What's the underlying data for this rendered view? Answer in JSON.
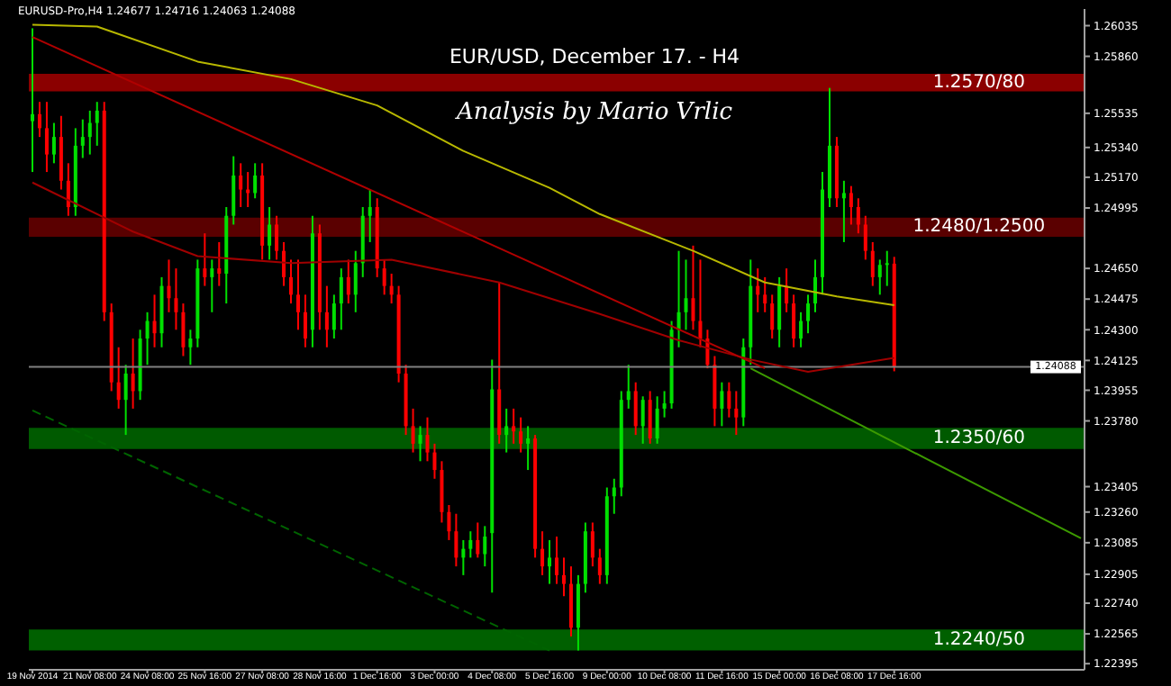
{
  "chart_data": {
    "type": "candlestick",
    "title": "EUR/USD, December 17. - H4",
    "subtitle": "Analysis by Mario Vrlic",
    "annotations": [
      "EURUSD-Pro,H4  1.24677 1.24716 1.24063 1.24088"
    ],
    "categories": [
      "19 Nov 2014",
      null,
      null,
      null,
      null,
      null,
      null,
      null,
      "21 Nov 08:00",
      null,
      null,
      null,
      null,
      null,
      null,
      null,
      "24 Nov 08:00",
      null,
      null,
      null,
      null,
      null,
      null,
      null,
      "25 Nov 16:00",
      null,
      null,
      null,
      null,
      null,
      null,
      null,
      "27 Nov 08:00",
      null,
      null,
      null,
      null,
      null,
      null,
      null,
      "28 Nov 16:00",
      null,
      null,
      null,
      null,
      null,
      null,
      null,
      "1 Dec 16:00",
      null,
      null,
      null,
      null,
      null,
      null,
      null,
      "3 Dec 00:00",
      null,
      null,
      null,
      null,
      null,
      null,
      null,
      "4 Dec 08:00",
      null,
      null,
      null,
      null,
      null,
      null,
      null,
      "5 Dec 16:00",
      null,
      null,
      null,
      null,
      null,
      null,
      null,
      "9 Dec 00:00",
      null,
      null,
      null,
      null,
      null,
      null,
      null,
      "10 Dec 08:00",
      null,
      null,
      null,
      null,
      null,
      null,
      null,
      "11 Dec 16:00",
      null,
      null,
      null,
      null,
      null,
      null,
      null,
      "15 Dec 00:00",
      null,
      null,
      null,
      null,
      null,
      null,
      null,
      "16 Dec 08:00",
      null,
      null,
      null,
      null,
      null,
      null,
      null,
      "17 Dec 16:00",
      null,
      null,
      null,
      null,
      null,
      null,
      null,
      null,
      null,
      null,
      null,
      null,
      null,
      null,
      null,
      null,
      null,
      null,
      null,
      null,
      null,
      null,
      null,
      null,
      null,
      null
    ],
    "ohlc": [
      [
        1.2549,
        1.2602,
        1.252,
        1.2553
      ],
      [
        1.2553,
        1.256,
        1.254,
        1.2545
      ],
      [
        1.2545,
        1.256,
        1.252,
        1.253
      ],
      [
        1.253,
        1.2548,
        1.2525,
        1.254
      ],
      [
        1.254,
        1.2552,
        1.251,
        1.2515
      ],
      [
        1.2515,
        1.2525,
        1.2495,
        1.25
      ],
      [
        1.25,
        1.2545,
        1.2495,
        1.2535
      ],
      [
        1.2535,
        1.255,
        1.2528,
        1.254
      ],
      [
        1.254,
        1.2555,
        1.253,
        1.2548
      ],
      [
        1.2548,
        1.256,
        1.2535,
        1.2555
      ],
      [
        1.2555,
        1.256,
        1.2435,
        1.244
      ],
      [
        1.244,
        1.2445,
        1.2395,
        1.24
      ],
      [
        1.24,
        1.242,
        1.2385,
        1.239
      ],
      [
        1.239,
        1.241,
        1.237,
        1.2405
      ],
      [
        1.2405,
        1.2425,
        1.2385,
        1.2395
      ],
      [
        1.2395,
        1.243,
        1.239,
        1.2425
      ],
      [
        1.2425,
        1.244,
        1.241,
        1.2435
      ],
      [
        1.2435,
        1.245,
        1.242,
        1.2428
      ],
      [
        1.2428,
        1.246,
        1.242,
        1.2455
      ],
      [
        1.2455,
        1.247,
        1.244,
        1.2448
      ],
      [
        1.2448,
        1.2465,
        1.243,
        1.244
      ],
      [
        1.244,
        1.2445,
        1.2415,
        1.242
      ],
      [
        1.242,
        1.243,
        1.241,
        1.2425
      ],
      [
        1.2425,
        1.247,
        1.242,
        1.2465
      ],
      [
        1.2465,
        1.2485,
        1.2455,
        1.246
      ],
      [
        1.246,
        1.247,
        1.244,
        1.2465
      ],
      [
        1.2465,
        1.248,
        1.2455,
        1.2462
      ],
      [
        1.2462,
        1.25,
        1.2445,
        1.2495
      ],
      [
        1.2495,
        1.2529,
        1.249,
        1.2518
      ],
      [
        1.2518,
        1.2525,
        1.25,
        1.251
      ],
      [
        1.251,
        1.252,
        1.25,
        1.2508
      ],
      [
        1.2508,
        1.2525,
        1.2505,
        1.2518
      ],
      [
        1.2518,
        1.2525,
        1.247,
        1.2478
      ],
      [
        1.2478,
        1.25,
        1.247,
        1.249
      ],
      [
        1.249,
        1.2495,
        1.247,
        1.2475
      ],
      [
        1.2475,
        1.248,
        1.2455,
        1.246
      ],
      [
        1.246,
        1.247,
        1.2445,
        1.245
      ],
      [
        1.245,
        1.247,
        1.243,
        1.244
      ],
      [
        1.244,
        1.245,
        1.242,
        1.2425
      ],
      [
        1.243,
        1.2495,
        1.242,
        1.2485
      ],
      [
        1.2485,
        1.249,
        1.243,
        1.244
      ],
      [
        1.244,
        1.2455,
        1.242,
        1.243
      ],
      [
        1.243,
        1.245,
        1.2425,
        1.2445
      ],
      [
        1.2445,
        1.2465,
        1.243,
        1.246
      ],
      [
        1.246,
        1.247,
        1.2445,
        1.245
      ],
      [
        1.245,
        1.2475,
        1.244,
        1.2468
      ],
      [
        1.2468,
        1.25,
        1.246,
        1.2495
      ],
      [
        1.2495,
        1.251,
        1.248,
        1.25
      ],
      [
        1.25,
        1.2505,
        1.246,
        1.2465
      ],
      [
        1.2465,
        1.247,
        1.245,
        1.2455
      ],
      [
        1.2455,
        1.2462,
        1.2445,
        1.245
      ],
      [
        1.245,
        1.2455,
        1.24,
        1.2405
      ],
      [
        1.2405,
        1.241,
        1.237,
        1.2375
      ],
      [
        1.2375,
        1.2385,
        1.236,
        1.2365
      ],
      [
        1.2365,
        1.2375,
        1.2355,
        1.237
      ],
      [
        1.237,
        1.238,
        1.2355,
        1.236
      ],
      [
        1.236,
        1.2365,
        1.2345,
        1.235
      ],
      [
        1.235,
        1.2355,
        1.232,
        1.2326
      ],
      [
        1.2326,
        1.233,
        1.231,
        1.2315
      ],
      [
        1.2315,
        1.2325,
        1.2295,
        1.23
      ],
      [
        1.23,
        1.231,
        1.229,
        1.2305
      ],
      [
        1.2305,
        1.2315,
        1.23,
        1.231
      ],
      [
        1.231,
        1.232,
        1.23,
        1.2302
      ],
      [
        1.2302,
        1.2318,
        1.2295,
        1.2312
      ],
      [
        1.2314,
        1.2413,
        1.228,
        1.2396
      ],
      [
        1.2396,
        1.2457,
        1.2365,
        1.237
      ],
      [
        1.237,
        1.2385,
        1.236,
        1.2375
      ],
      [
        1.2375,
        1.2385,
        1.2365,
        1.2372
      ],
      [
        1.2372,
        1.238,
        1.236,
        1.2365
      ],
      [
        1.2365,
        1.2375,
        1.235,
        1.2368
      ],
      [
        1.2368,
        1.237,
        1.23,
        1.2305
      ],
      [
        1.2305,
        1.2315,
        1.229,
        1.2295
      ],
      [
        1.2295,
        1.231,
        1.2285,
        1.23
      ],
      [
        1.23,
        1.2312,
        1.2285,
        1.229
      ],
      [
        1.229,
        1.23,
        1.2278,
        1.2285
      ],
      [
        1.2285,
        1.2295,
        1.2255,
        1.226
      ],
      [
        1.226,
        1.229,
        1.2247,
        1.2285
      ],
      [
        1.2285,
        1.232,
        1.228,
        1.2315
      ],
      [
        1.2315,
        1.232,
        1.2295,
        1.23
      ],
      [
        1.23,
        1.2305,
        1.2285,
        1.229
      ],
      [
        1.229,
        1.234,
        1.2285,
        1.2335
      ],
      [
        1.2335,
        1.2345,
        1.2325,
        1.234
      ],
      [
        1.234,
        1.2395,
        1.2335,
        1.239
      ],
      [
        1.239,
        1.241,
        1.2385,
        1.2395
      ],
      [
        1.2395,
        1.24,
        1.237,
        1.2375
      ],
      [
        1.2375,
        1.2392,
        1.2365,
        1.239
      ],
      [
        1.239,
        1.2395,
        1.2365,
        1.2368
      ],
      [
        1.2368,
        1.2392,
        1.2365,
        1.2385
      ],
      [
        1.2385,
        1.2395,
        1.238,
        1.2388
      ],
      [
        1.2388,
        1.2435,
        1.2385,
        1.243
      ],
      [
        1.243,
        1.2475,
        1.242,
        1.244
      ],
      [
        1.244,
        1.247,
        1.243,
        1.2448
      ],
      [
        1.2448,
        1.2478,
        1.243,
        1.2435
      ],
      [
        1.2435,
        1.247,
        1.242,
        1.2425
      ],
      [
        1.2425,
        1.243,
        1.2408,
        1.241
      ],
      [
        1.241,
        1.2415,
        1.2375,
        1.2385
      ],
      [
        1.2385,
        1.24,
        1.2375,
        1.2395
      ],
      [
        1.2395,
        1.24,
        1.238,
        1.2385
      ],
      [
        1.2385,
        1.2395,
        1.237,
        1.238
      ],
      [
        1.238,
        1.2425,
        1.2375,
        1.242
      ],
      [
        1.242,
        1.247,
        1.241,
        1.2455
      ],
      [
        1.2455,
        1.2465,
        1.244,
        1.245
      ],
      [
        1.245,
        1.246,
        1.244,
        1.2445
      ],
      [
        1.2445,
        1.245,
        1.2425,
        1.243
      ],
      [
        1.243,
        1.246,
        1.242,
        1.2455
      ],
      [
        1.2455,
        1.2465,
        1.244,
        1.2445
      ],
      [
        1.2445,
        1.245,
        1.242,
        1.2425
      ],
      [
        1.2425,
        1.244,
        1.242,
        1.2435
      ],
      [
        1.2435,
        1.245,
        1.2428,
        1.2445
      ],
      [
        1.2445,
        1.247,
        1.244,
        1.246
      ],
      [
        1.246,
        1.252,
        1.245,
        1.251
      ],
      [
        1.2505,
        1.2568,
        1.25,
        1.2535
      ],
      [
        1.2535,
        1.254,
        1.25,
        1.2505
      ],
      [
        1.2505,
        1.2515,
        1.248,
        1.2508
      ],
      [
        1.2508,
        1.2512,
        1.249,
        1.25
      ],
      [
        1.25,
        1.2505,
        1.2485,
        1.249
      ],
      [
        1.249,
        1.2495,
        1.247,
        1.2475
      ],
      [
        1.2475,
        1.248,
        1.2455,
        1.246
      ],
      [
        1.246,
        1.247,
        1.245,
        1.2467
      ],
      [
        1.2467,
        1.2475,
        1.2455,
        1.2468
      ],
      [
        1.24677,
        1.24716,
        1.24063,
        1.24088
      ],
      null,
      null,
      null,
      null,
      null,
      null,
      null,
      null,
      null,
      null,
      null,
      null,
      null,
      null,
      null,
      null,
      null,
      null,
      null,
      null,
      null,
      null,
      null,
      null,
      null,
      null
    ],
    "series": [
      {
        "type": "line",
        "color": "#b8b800",
        "values": [
          1.2604,
          null,
          null,
          null,
          null,
          null,
          null,
          null,
          null,
          1.2603,
          null,
          null,
          null,
          null,
          null,
          null,
          null,
          null,
          null,
          null,
          null,
          null,
          null,
          1.2583,
          null,
          null,
          null,
          null,
          null,
          null,
          null,
          null,
          null,
          null,
          null,
          null,
          1.2573,
          null,
          null,
          null,
          null,
          null,
          null,
          null,
          null,
          null,
          null,
          null,
          1.2558,
          null,
          null,
          null,
          null,
          null,
          null,
          null,
          null,
          null,
          null,
          null,
          1.2532,
          null,
          null,
          null,
          null,
          null,
          null,
          null,
          null,
          null,
          null,
          null,
          1.2511,
          null,
          null,
          null,
          null,
          null,
          null,
          1.2496,
          null,
          null,
          null,
          null,
          null,
          null,
          null,
          null,
          null,
          null,
          null,
          null,
          1.2475,
          null,
          null,
          null,
          null,
          null,
          null,
          null,
          null,
          null,
          1.2457,
          null,
          null,
          null,
          null,
          null,
          null,
          null,
          null,
          null,
          1.2449,
          null,
          null,
          null,
          null,
          null,
          null,
          null,
          1.2444,
          null,
          null,
          null,
          null,
          null,
          null,
          null,
          null,
          null,
          null,
          null,
          null,
          null,
          null,
          null,
          null,
          null,
          null,
          null,
          null,
          null,
          null,
          null,
          null,
          null,
          null
        ]
      },
      {
        "type": "line",
        "color": "#a00000",
        "values": [
          1.2514,
          null,
          null,
          null,
          null,
          null,
          null,
          null,
          null,
          null,
          null,
          null,
          null,
          null,
          1.2486,
          null,
          null,
          null,
          null,
          null,
          null,
          null,
          null,
          1.2472,
          null,
          null,
          null,
          null,
          null,
          null,
          null,
          null,
          null,
          null,
          null,
          null,
          1.2468,
          null,
          null,
          null,
          null,
          null,
          null,
          null,
          null,
          null,
          null,
          null,
          null,
          null,
          1.247,
          null,
          null,
          null,
          null,
          null,
          null,
          null,
          null,
          null,
          null,
          null,
          null,
          null,
          null,
          1.2457,
          null,
          null,
          null,
          null,
          null,
          null,
          null,
          null,
          null,
          null,
          null,
          null,
          null,
          1.2439,
          null,
          null,
          null,
          null,
          null,
          null,
          null,
          null,
          null,
          null,
          1.2424,
          null,
          null,
          null,
          null,
          null,
          null,
          null,
          null,
          null,
          1.2413,
          null,
          null,
          null,
          null,
          null,
          null,
          null,
          1.2406,
          null,
          null,
          null,
          null,
          null,
          1.241,
          null,
          null,
          null,
          null,
          null,
          1.2414,
          null,
          null,
          null,
          null,
          null,
          null,
          null,
          null,
          null,
          null,
          null,
          null,
          null,
          null,
          null,
          null,
          null,
          null,
          null,
          null,
          null,
          null,
          null,
          null,
          null,
          null
        ]
      },
      {
        "type": "line",
        "color": "#b00000",
        "values": [
          1.2597,
          null,
          null,
          null,
          null,
          null,
          null,
          null,
          null,
          null,
          null,
          null,
          null,
          null,
          null,
          null,
          null,
          null,
          null,
          null,
          null,
          null,
          null,
          null,
          null,
          null,
          null,
          null,
          null,
          null,
          null,
          null,
          null,
          null,
          null,
          null,
          null,
          null,
          null,
          null,
          null,
          null,
          null,
          null,
          null,
          null,
          null,
          null,
          null,
          null,
          null,
          null,
          null,
          null,
          null,
          null,
          null,
          null,
          null,
          null,
          null,
          null,
          null,
          null,
          null,
          null,
          null,
          null,
          null,
          null,
          null,
          null,
          null,
          null,
          null,
          null,
          null,
          null,
          null,
          null,
          null,
          null,
          null,
          null,
          null,
          null,
          null,
          null,
          null,
          null,
          null,
          null,
          null,
          null,
          null,
          null,
          null,
          null,
          null,
          null,
          null,
          null,
          1.2408,
          null,
          null,
          null,
          null,
          null,
          null,
          null,
          null,
          null,
          null,
          null,
          null,
          null,
          null,
          null,
          null,
          null,
          null,
          null,
          null,
          null,
          null,
          null,
          null,
          null,
          null,
          null,
          null,
          null,
          null,
          null,
          null,
          null,
          null,
          null,
          null,
          null,
          null,
          null,
          null,
          null,
          null,
          null,
          null
        ]
      },
      {
        "type": "line",
        "color": "#006400",
        "line_style": "dashed",
        "values": [
          1.2384,
          null,
          null,
          null,
          null,
          null,
          null,
          null,
          null,
          null,
          null,
          null,
          null,
          null,
          null,
          null,
          null,
          null,
          null,
          null,
          null,
          null,
          null,
          null,
          null,
          null,
          null,
          null,
          null,
          null,
          null,
          null,
          null,
          null,
          null,
          null,
          null,
          null,
          null,
          null,
          null,
          null,
          null,
          null,
          null,
          null,
          null,
          null,
          null,
          null,
          null,
          null,
          null,
          null,
          null,
          null,
          null,
          null,
          null,
          null,
          null,
          null,
          null,
          null,
          null,
          null,
          null,
          null,
          null,
          null,
          null,
          null,
          1.2247,
          null,
          null,
          null,
          null,
          null,
          null,
          null,
          null,
          null,
          null,
          null,
          null,
          null,
          null,
          null,
          null,
          null,
          null,
          null,
          null,
          null,
          null,
          null,
          null,
          null,
          null,
          null,
          null,
          null,
          null,
          null,
          null,
          null,
          null,
          null,
          null,
          null,
          null,
          null,
          null,
          null,
          null,
          null,
          null,
          null,
          null,
          null,
          null,
          null,
          null,
          null,
          null,
          null,
          null,
          null,
          null,
          null,
          null,
          null,
          null,
          null,
          null,
          null,
          null,
          null,
          null,
          null,
          null,
          null,
          null,
          null,
          null,
          null,
          null
        ]
      },
      {
        "type": "line",
        "color": "#3c9a00",
        "values": [
          null,
          null,
          null,
          null,
          null,
          null,
          null,
          null,
          null,
          null,
          null,
          null,
          null,
          null,
          null,
          null,
          null,
          null,
          null,
          null,
          null,
          null,
          null,
          null,
          null,
          null,
          null,
          null,
          null,
          null,
          null,
          null,
          null,
          null,
          null,
          null,
          null,
          null,
          null,
          null,
          null,
          null,
          null,
          null,
          null,
          null,
          null,
          null,
          null,
          null,
          null,
          null,
          null,
          null,
          null,
          null,
          null,
          null,
          null,
          null,
          null,
          null,
          null,
          null,
          null,
          null,
          null,
          null,
          null,
          null,
          null,
          null,
          null,
          null,
          null,
          null,
          null,
          null,
          null,
          null,
          null,
          null,
          null,
          null,
          null,
          null,
          null,
          null,
          null,
          null,
          null,
          null,
          null,
          null,
          null,
          null,
          null,
          null,
          null,
          null,
          1.2408,
          null,
          null,
          null,
          null,
          null,
          null,
          null,
          null,
          null,
          null,
          null,
          null,
          null,
          null,
          null,
          null,
          null,
          null,
          null,
          null,
          null,
          null,
          null,
          null,
          null,
          null,
          null,
          null,
          null,
          null,
          null,
          null,
          null,
          null,
          null,
          null,
          null,
          null,
          null,
          null,
          null,
          null,
          null,
          null,
          null,
          1.2311
        ]
      }
    ],
    "bands": [
      {
        "axis": "y",
        "from": 1.2566,
        "to": 1.2576,
        "label": "1.2570/80",
        "color": "#8b0000"
      },
      {
        "axis": "y",
        "from": 1.2483,
        "to": 1.2494,
        "label": "1.2480/1.2500",
        "color": "#5a0000"
      },
      {
        "axis": "y",
        "from": 1.2362,
        "to": 1.2374,
        "label": "1.2350/60",
        "color": "#005a00"
      },
      {
        "axis": "y",
        "from": 1.2247,
        "to": 1.2259,
        "label": "1.2240/50",
        "color": "#006000"
      }
    ],
    "ref_lines": [
      {
        "axis": "y",
        "value": 1.24088,
        "label": "1.24088",
        "color": "#808080"
      }
    ],
    "ylim": [
      1.2236,
      1.2613
    ],
    "yticks": [
      1.26035,
      {
        "value": 1.2586,
        "label": "1.25860"
      },
      1.25535,
      {
        "value": 1.2534,
        "label": "1.25340"
      },
      {
        "value": 1.2517,
        "label": "1.25170"
      },
      1.24995,
      {
        "value": 1.2465,
        "label": "1.24650"
      },
      1.24475,
      {
        "value": 1.243,
        "label": "1.24300"
      },
      1.24125,
      1.23955,
      {
        "value": 1.2378,
        "label": "1.23780"
      },
      1.23405,
      {
        "value": 1.2326,
        "label": "1.23260"
      },
      1.23085,
      1.22905,
      {
        "value": 1.2274,
        "label": "1.22740"
      },
      1.22565,
      1.22395
    ]
  }
}
